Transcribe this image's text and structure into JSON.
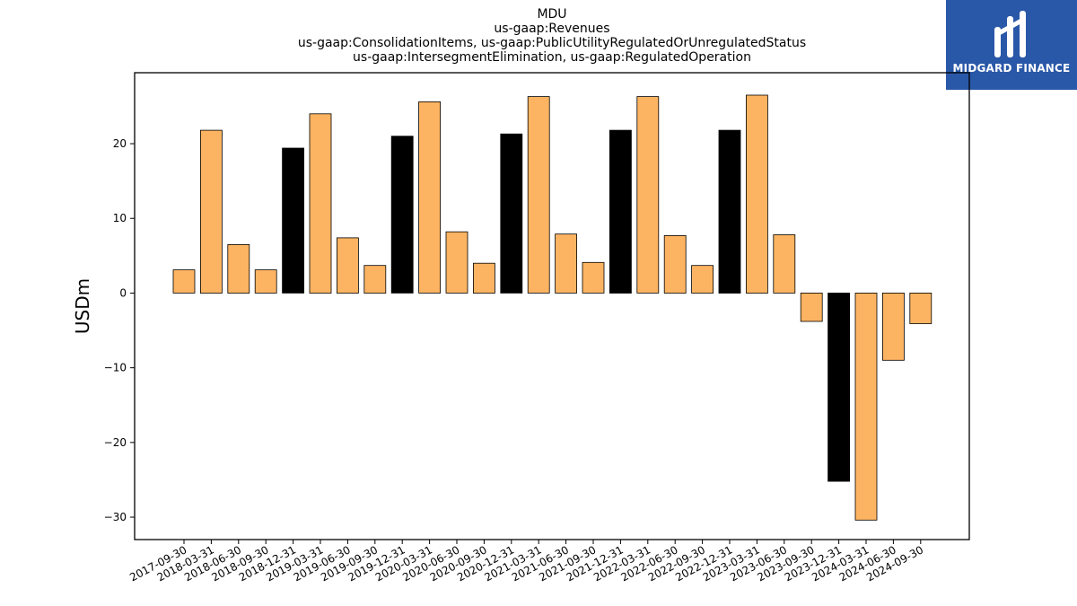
{
  "header": {
    "title_lines": [
      "MDU",
      "us-gaap:Revenues",
      "us-gaap:ConsolidationItems, us-gaap:PublicUtilityRegulatedOrUnregulatedStatus",
      "us-gaap:IntersegmentElimination, us-gaap:RegulatedOperation"
    ]
  },
  "logo": {
    "brand": "MIDGARD FINANCE",
    "background": "#2a58a8"
  },
  "chart_data": {
    "type": "bar",
    "ylabel": "USDm",
    "xlabel": "",
    "ylim": [
      -33,
      29.5
    ],
    "yticks": [
      -30,
      -20,
      -10,
      0,
      10,
      20
    ],
    "grid": false,
    "colors": {
      "quarter": "#fdb462",
      "annual": "#000000",
      "edge": "#000000"
    },
    "categories": [
      "2017-09-30",
      "2018-03-31",
      "2018-06-30",
      "2018-09-30",
      "2018-12-31",
      "2019-03-31",
      "2019-06-30",
      "2019-09-30",
      "2019-12-31",
      "2020-03-31",
      "2020-06-30",
      "2020-09-30",
      "2020-12-31",
      "2021-03-31",
      "2021-06-30",
      "2021-09-30",
      "2021-12-31",
      "2022-03-31",
      "2022-06-30",
      "2022-09-30",
      "2022-12-31",
      "2023-03-31",
      "2023-06-30",
      "2023-09-30",
      "2023-12-31",
      "2024-03-31",
      "2024-06-30",
      "2024-09-30"
    ],
    "values": [
      3.1,
      21.8,
      6.5,
      3.1,
      19.4,
      24.0,
      7.4,
      3.7,
      21.0,
      25.6,
      8.2,
      4.0,
      21.3,
      26.3,
      7.9,
      4.1,
      21.8,
      26.3,
      7.7,
      3.7,
      21.8,
      26.5,
      7.8,
      -3.8,
      -25.2,
      -30.4,
      -9.0,
      -4.1
    ],
    "annual": [
      false,
      false,
      false,
      false,
      true,
      false,
      false,
      false,
      true,
      false,
      false,
      false,
      true,
      false,
      false,
      false,
      true,
      false,
      false,
      false,
      true,
      false,
      false,
      false,
      true,
      false,
      false,
      false
    ]
  }
}
